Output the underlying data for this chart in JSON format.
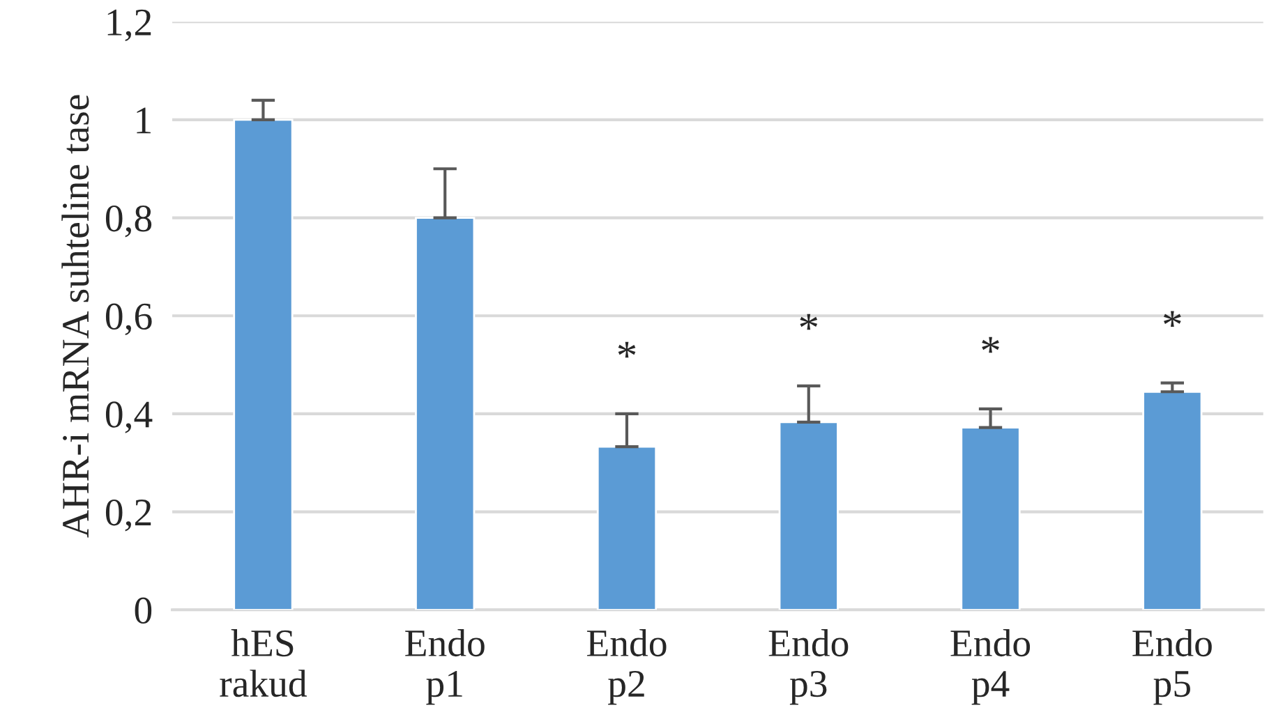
{
  "chart_data": {
    "type": "bar",
    "ylabel": "AHR-i mRNA suhteline tase",
    "categories": [
      "hES\nrakud",
      "Endo\np1",
      "Endo\np2",
      "Endo\np3",
      "Endo\np4",
      "Endo\np5"
    ],
    "values": [
      1.0,
      0.8,
      0.333,
      0.383,
      0.372,
      0.445
    ],
    "errors": [
      [
        1.0,
        1.04
      ],
      [
        0.8,
        0.9
      ],
      [
        0.333,
        0.4
      ],
      [
        0.383,
        0.457
      ],
      [
        0.372,
        0.41
      ],
      [
        0.445,
        0.463
      ]
    ],
    "color": "#5b9bd5",
    "ylim": [
      0,
      1.2
    ],
    "yticks": [
      0,
      {
        "value": 0.2,
        "label": "0,2"
      },
      {
        "value": 0.4,
        "label": "0,4"
      },
      {
        "value": 0.6,
        "label": "0,6"
      },
      {
        "value": 0.8,
        "label": "0,8"
      },
      1,
      {
        "value": 1.2,
        "label": "1,2"
      }
    ],
    "grid": "y",
    "value_labels": [
      null,
      null,
      "*",
      "*",
      "*",
      "*"
    ]
  }
}
